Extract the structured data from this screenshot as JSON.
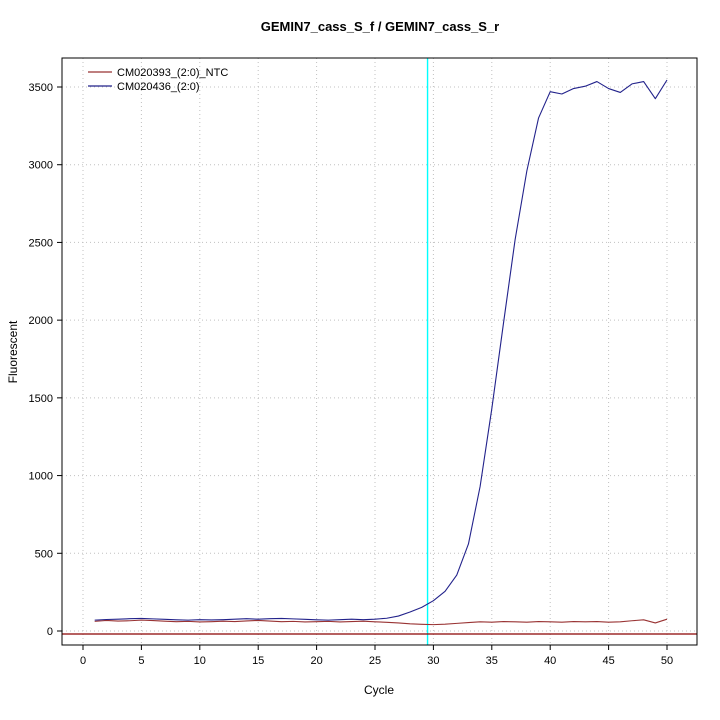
{
  "chart_data": {
    "type": "line",
    "title": "GEMIN7_cass_S_f / GEMIN7_cass_S_r",
    "xlabel": "Cycle",
    "ylabel": "Fluorescent",
    "xlim": [
      -2,
      52.7
    ],
    "ylim": [
      -120,
      3690
    ],
    "xticks": [
      0,
      5,
      10,
      15,
      20,
      25,
      30,
      35,
      40,
      45,
      50
    ],
    "yticks": [
      0,
      500,
      1000,
      1500,
      2000,
      2500,
      3000,
      3500
    ],
    "grid": "dotted",
    "legend_position": "top-left",
    "x": [
      1,
      2,
      3,
      4,
      5,
      6,
      7,
      8,
      9,
      10,
      11,
      12,
      13,
      14,
      15,
      16,
      17,
      18,
      19,
      20,
      21,
      22,
      23,
      24,
      25,
      26,
      27,
      28,
      29,
      30,
      31,
      32,
      33,
      34,
      35,
      36,
      37,
      38,
      39,
      40,
      41,
      42,
      43,
      44,
      45,
      46,
      47,
      48,
      49,
      50
    ],
    "series": [
      {
        "name": "CM020393_(2:0)_NTC",
        "color": "#993333",
        "values": [
          62,
          68,
          64,
          66,
          70,
          67,
          63,
          60,
          62,
          58,
          60,
          63,
          61,
          65,
          68,
          64,
          60,
          62,
          58,
          60,
          62,
          58,
          61,
          63,
          59,
          56,
          52,
          46,
          43,
          41,
          44,
          49,
          54,
          59,
          57,
          61,
          59,
          57,
          61,
          59,
          57,
          61,
          59,
          61,
          57,
          59,
          66,
          72,
          52,
          76
        ]
      },
      {
        "name": "CM020436_(2:0)",
        "color": "#22228b",
        "values": [
          70,
          74,
          76,
          79,
          81,
          78,
          75,
          72,
          70,
          73,
          71,
          73,
          76,
          79,
          76,
          79,
          81,
          78,
          75,
          72,
          70,
          73,
          76,
          73,
          76,
          82,
          96,
          122,
          152,
          195,
          255,
          360,
          560,
          930,
          1430,
          1980,
          2520,
          2960,
          3300,
          3470,
          3455,
          3490,
          3505,
          3535,
          3490,
          3465,
          3520,
          3535,
          3425,
          3545
        ]
      }
    ],
    "threshold_line": {
      "y": 0,
      "color": "#8b0000"
    },
    "ct_line": {
      "x": 29.5,
      "color": "#00ffff"
    }
  }
}
